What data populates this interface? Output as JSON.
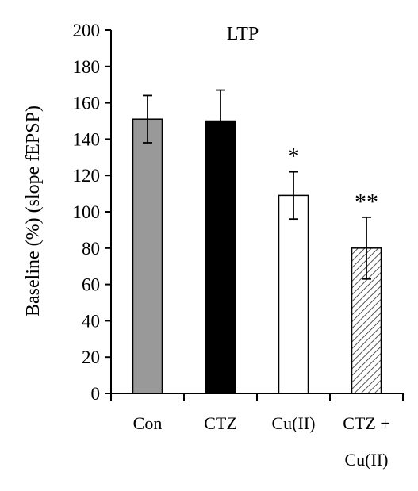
{
  "chart_data": {
    "type": "bar",
    "title": "LTP",
    "ylabel": "Baseline (%) (slope fEPSP)",
    "xlabel": "",
    "ylim": [
      0,
      200
    ],
    "yticks": [
      0,
      20,
      40,
      60,
      80,
      100,
      120,
      140,
      160,
      180,
      200
    ],
    "categories": [
      {
        "lines": [
          "Con"
        ]
      },
      {
        "lines": [
          "CTZ"
        ]
      },
      {
        "lines": [
          "Cu(II)"
        ]
      },
      {
        "lines": [
          "CTZ +",
          "Cu(II)"
        ]
      }
    ],
    "values": [
      151,
      150,
      109,
      80
    ],
    "errors": [
      13,
      17,
      13,
      17
    ],
    "significance": [
      "",
      "",
      "*",
      "**"
    ],
    "bar_fills": [
      "#999999",
      "#000000",
      "#ffffff",
      "hatch"
    ],
    "grid": false,
    "legend": "none"
  }
}
